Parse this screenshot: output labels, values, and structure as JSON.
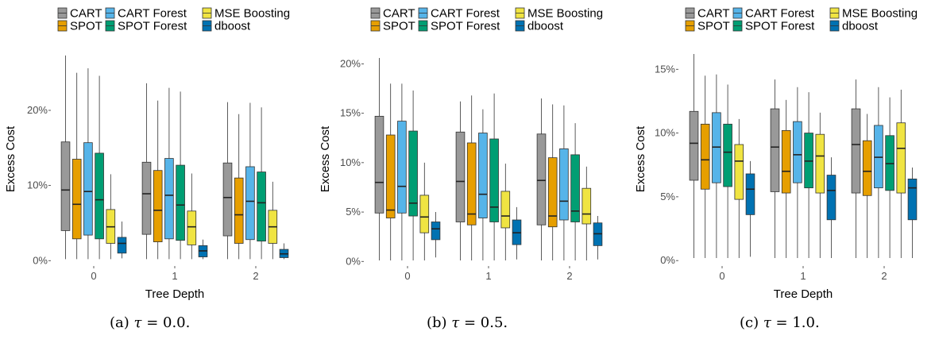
{
  "figure": {
    "legend": [
      {
        "name": "CART",
        "color": "#999999"
      },
      {
        "name": "CART Forest",
        "color": "#56B4E9"
      },
      {
        "name": "MSE Boosting",
        "color": "#F0E442"
      },
      {
        "name": "SPOT",
        "color": "#E69F00"
      },
      {
        "name": "SPOT Forest",
        "color": "#009E73"
      },
      {
        "name": "dboost",
        "color": "#0072B2"
      }
    ]
  },
  "chart_data": [
    {
      "type": "boxplot",
      "caption": {
        "prefix": "(a)",
        "var": "τ",
        "rest": " = 0.0."
      },
      "xlabel": "Tree Depth",
      "ylabel": "Excess Cost",
      "categories": [
        "0",
        "1",
        "2"
      ],
      "yticks": [
        {
          "v": 0,
          "label": "0%"
        },
        {
          "v": 10,
          "label": "10%"
        },
        {
          "v": 20,
          "label": "20%"
        }
      ],
      "ylim": [
        -0.5,
        27.5
      ],
      "series": [
        {
          "name": "CART",
          "color": "#999999",
          "boxes": [
            [
              0.2,
              4.0,
              9.4,
              15.8,
              27.3
            ],
            [
              0.2,
              3.5,
              8.9,
              13.1,
              23.6
            ],
            [
              0.2,
              3.3,
              8.4,
              13.0,
              21.1
            ]
          ]
        },
        {
          "name": "SPOT",
          "color": "#E69F00",
          "boxes": [
            [
              0.2,
              2.9,
              7.5,
              13.5,
              25.0
            ],
            [
              0.2,
              2.5,
              6.7,
              12.0,
              21.3
            ],
            [
              0.2,
              2.3,
              6.1,
              11.0,
              19.5
            ]
          ]
        },
        {
          "name": "CART Forest",
          "color": "#56B4E9",
          "boxes": [
            [
              0.2,
              3.4,
              9.2,
              15.7,
              25.6
            ],
            [
              0.2,
              2.9,
              8.7,
              13.6,
              23.0
            ],
            [
              0.2,
              2.8,
              7.9,
              12.5,
              21.0
            ]
          ]
        },
        {
          "name": "SPOT Forest",
          "color": "#009E73",
          "boxes": [
            [
              0.2,
              2.9,
              8.1,
              14.3,
              24.6
            ],
            [
              0.2,
              2.7,
              7.4,
              12.7,
              22.5
            ],
            [
              0.2,
              2.6,
              7.7,
              11.8,
              20.4
            ]
          ]
        },
        {
          "name": "MSE Boosting",
          "color": "#F0E442",
          "boxes": [
            [
              0.2,
              2.3,
              4.5,
              6.8,
              11.5
            ],
            [
              0.2,
              2.1,
              4.5,
              6.6,
              11.6
            ],
            [
              0.2,
              2.3,
              4.5,
              6.7,
              10.5
            ]
          ]
        },
        {
          "name": "dboost",
          "color": "#0072B2",
          "boxes": [
            [
              0.3,
              1.0,
              2.3,
              3.1,
              5.2
            ],
            [
              0.2,
              0.5,
              1.3,
              2.0,
              2.8
            ],
            [
              0.2,
              0.4,
              0.9,
              1.5,
              2.3
            ]
          ]
        }
      ]
    },
    {
      "type": "boxplot",
      "caption": {
        "prefix": "(b)",
        "var": "τ",
        "rest": " = 0.5."
      },
      "xlabel": "",
      "ylabel": "Excess Cost",
      "categories": [
        "0",
        "1",
        "2"
      ],
      "yticks": [
        {
          "v": 0,
          "label": "0%"
        },
        {
          "v": 5,
          "label": "5%"
        },
        {
          "v": 10,
          "label": "10%"
        },
        {
          "v": 15,
          "label": "15%"
        },
        {
          "v": 20,
          "label": "20%"
        }
      ],
      "ylim": [
        -0.3,
        21.0
      ],
      "series": [
        {
          "name": "CART",
          "color": "#999999",
          "boxes": [
            [
              0.1,
              4.9,
              8.0,
              14.7,
              20.6
            ],
            [
              0.1,
              4.0,
              8.1,
              13.1,
              16.2
            ],
            [
              0.1,
              3.7,
              8.2,
              12.9,
              16.5
            ]
          ]
        },
        {
          "name": "SPOT",
          "color": "#E69F00",
          "boxes": [
            [
              0.1,
              4.4,
              5.2,
              12.8,
              18.0
            ],
            [
              0.1,
              3.7,
              4.8,
              12.0,
              16.8
            ],
            [
              0.1,
              3.5,
              4.6,
              10.5,
              15.9
            ]
          ]
        },
        {
          "name": "CART Forest",
          "color": "#56B4E9",
          "boxes": [
            [
              0.1,
              4.9,
              7.6,
              14.2,
              18.0
            ],
            [
              0.1,
              4.4,
              6.8,
              13.0,
              15.4
            ],
            [
              0.1,
              4.2,
              6.1,
              11.4,
              15.8
            ]
          ]
        },
        {
          "name": "SPOT Forest",
          "color": "#009E73",
          "boxes": [
            [
              0.1,
              4.6,
              5.9,
              13.2,
              17.3
            ],
            [
              0.1,
              4.0,
              5.5,
              12.4,
              17.0
            ],
            [
              0.1,
              4.0,
              5.1,
              10.8,
              14.0
            ]
          ]
        },
        {
          "name": "MSE Boosting",
          "color": "#F0E442",
          "boxes": [
            [
              0.1,
              2.9,
              4.5,
              6.7,
              10.0
            ],
            [
              0.1,
              3.4,
              4.6,
              7.1,
              9.9
            ],
            [
              0.1,
              3.8,
              4.8,
              7.4,
              9.6
            ]
          ]
        },
        {
          "name": "dboost",
          "color": "#0072B2",
          "boxes": [
            [
              0.4,
              2.2,
              3.3,
              4.0,
              5.0
            ],
            [
              0.2,
              1.7,
              2.9,
              4.2,
              5.5
            ],
            [
              0.2,
              1.6,
              2.8,
              3.9,
              4.6
            ]
          ]
        }
      ]
    },
    {
      "type": "boxplot",
      "caption": {
        "prefix": "(c)",
        "var": "τ",
        "rest": " = 1.0."
      },
      "xlabel": "Tree Depth",
      "ylabel": "Excess Cost",
      "categories": [
        "0",
        "1",
        "2"
      ],
      "yticks": [
        {
          "v": 0,
          "label": "0%"
        },
        {
          "v": 5,
          "label": "5%"
        },
        {
          "v": 10,
          "label": "10%"
        },
        {
          "v": 15,
          "label": "15%"
        }
      ],
      "ylim": [
        -0.3,
        16.2
      ],
      "series": [
        {
          "name": "CART",
          "color": "#999999",
          "boxes": [
            [
              0.2,
              6.3,
              9.2,
              11.7,
              16.2
            ],
            [
              0.2,
              5.4,
              8.9,
              11.9,
              14.2
            ],
            [
              0.2,
              5.3,
              9.1,
              11.9,
              14.2
            ]
          ]
        },
        {
          "name": "SPOT",
          "color": "#E69F00",
          "boxes": [
            [
              0.2,
              5.6,
              7.9,
              10.7,
              14.5
            ],
            [
              0.2,
              5.3,
              7.0,
              10.2,
              12.6
            ],
            [
              0.2,
              5.1,
              7.0,
              9.4,
              11.5
            ]
          ]
        },
        {
          "name": "CART Forest",
          "color": "#56B4E9",
          "boxes": [
            [
              0.2,
              6.1,
              8.9,
              11.6,
              14.6
            ],
            [
              0.2,
              6.1,
              8.3,
              10.9,
              13.6
            ],
            [
              0.2,
              5.7,
              8.1,
              10.6,
              13.6
            ]
          ]
        },
        {
          "name": "SPOT Forest",
          "color": "#009E73",
          "boxes": [
            [
              0.2,
              5.8,
              8.5,
              10.7,
              13.8
            ],
            [
              0.2,
              5.7,
              7.8,
              10.0,
              13.2
            ],
            [
              0.2,
              5.5,
              7.6,
              9.8,
              12.8
            ]
          ]
        },
        {
          "name": "MSE Boosting",
          "color": "#F0E442",
          "boxes": [
            [
              0.2,
              4.8,
              7.8,
              9.1,
              11.1
            ],
            [
              0.2,
              5.3,
              8.2,
              9.9,
              11.6
            ],
            [
              0.2,
              5.3,
              8.8,
              10.8,
              13.4
            ]
          ]
        },
        {
          "name": "dboost",
          "color": "#0072B2",
          "boxes": [
            [
              0.3,
              3.6,
              5.6,
              6.8,
              7.8
            ],
            [
              0.2,
              3.2,
              5.5,
              6.7,
              8.1
            ],
            [
              0.2,
              3.2,
              5.7,
              6.4,
              7.3
            ]
          ]
        }
      ]
    }
  ]
}
